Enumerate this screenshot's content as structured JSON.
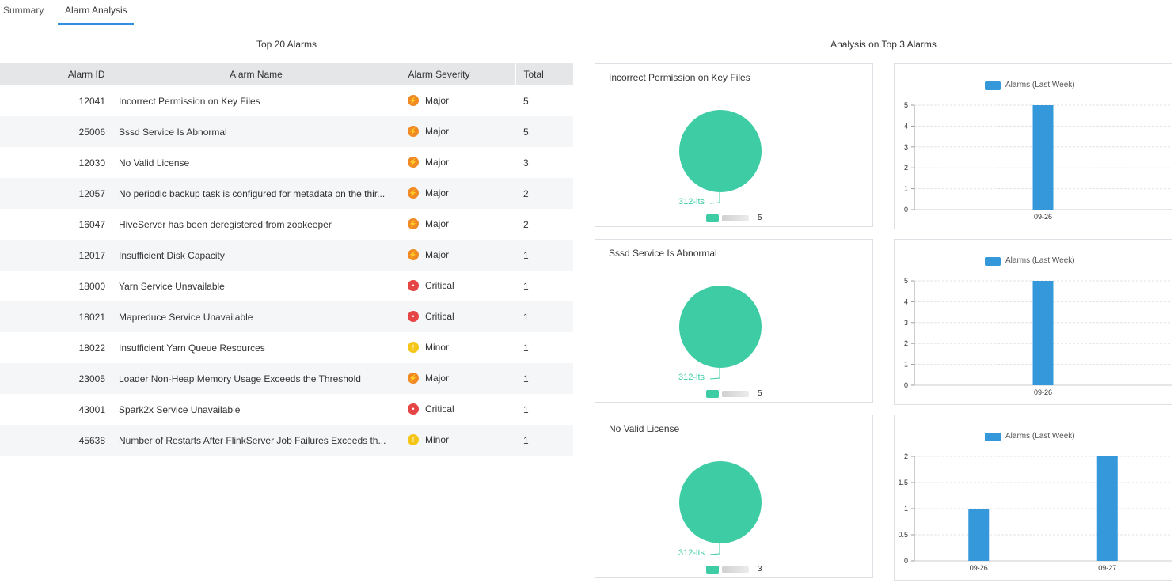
{
  "tabs": [
    {
      "label": "Summary",
      "active": false
    },
    {
      "label": "Alarm Analysis",
      "active": true
    }
  ],
  "left": {
    "title": "Top 20 Alarms",
    "columns": [
      "Alarm ID",
      "Alarm Name",
      "Alarm Severity",
      "Total"
    ],
    "rows": [
      {
        "id": "12041",
        "name": "Incorrect Permission on Key Files",
        "severity": "Major",
        "total": "5"
      },
      {
        "id": "25006",
        "name": "Sssd Service Is Abnormal",
        "severity": "Major",
        "total": "5"
      },
      {
        "id": "12030",
        "name": "No Valid License",
        "severity": "Major",
        "total": "3"
      },
      {
        "id": "12057",
        "name": "No periodic backup task is configured for metadata on the thir...",
        "severity": "Major",
        "total": "2"
      },
      {
        "id": "16047",
        "name": "HiveServer has been deregistered from zookeeper",
        "severity": "Major",
        "total": "2"
      },
      {
        "id": "12017",
        "name": "Insufficient Disk Capacity",
        "severity": "Major",
        "total": "1"
      },
      {
        "id": "18000",
        "name": "Yarn Service Unavailable",
        "severity": "Critical",
        "total": "1"
      },
      {
        "id": "18021",
        "name": "Mapreduce Service Unavailable",
        "severity": "Critical",
        "total": "1"
      },
      {
        "id": "18022",
        "name": "Insufficient Yarn Queue Resources",
        "severity": "Minor",
        "total": "1"
      },
      {
        "id": "23005",
        "name": "Loader Non-Heap Memory Usage Exceeds the Threshold",
        "severity": "Major",
        "total": "1"
      },
      {
        "id": "43001",
        "name": "Spark2x Service Unavailable",
        "severity": "Critical",
        "total": "1"
      },
      {
        "id": "45638",
        "name": "Number of Restarts After FlinkServer Job Failures Exceeds th...",
        "severity": "Minor",
        "total": "1"
      }
    ]
  },
  "right": {
    "title": "Analysis on Top 3 Alarms",
    "colors": {
      "pie": "#3ecca5",
      "bar": "#3498db",
      "major": "#f08a24",
      "critical": "#e54545",
      "minor": "#f5c518",
      "tab_accent": "#2f8ee0"
    }
  },
  "chart_data": [
    {
      "type": "pie",
      "title": "Incorrect Permission on Key Files",
      "slices": [
        {
          "label": "312-lts",
          "value": 5
        }
      ],
      "legend_value": "5"
    },
    {
      "type": "bar",
      "legend": "Alarms (Last Week)",
      "categories": [
        "09-26"
      ],
      "values": [
        5
      ],
      "ylim": [
        0,
        5
      ],
      "yticks": [
        "0",
        "1",
        "2",
        "3",
        "4",
        "5"
      ],
      "grid": true
    },
    {
      "type": "pie",
      "title": "Sssd Service Is Abnormal",
      "slices": [
        {
          "label": "312-lts",
          "value": 5
        }
      ],
      "legend_value": "5"
    },
    {
      "type": "bar",
      "legend": "Alarms (Last Week)",
      "categories": [
        "09-26"
      ],
      "values": [
        5
      ],
      "ylim": [
        0,
        5
      ],
      "yticks": [
        "0",
        "1",
        "2",
        "3",
        "4",
        "5"
      ],
      "grid": true
    },
    {
      "type": "pie",
      "title": "No Valid License",
      "slices": [
        {
          "label": "312-lts",
          "value": 3
        }
      ],
      "legend_value": "3"
    },
    {
      "type": "bar",
      "legend": "Alarms (Last Week)",
      "categories": [
        "09-26",
        "09-27"
      ],
      "values": [
        1,
        2
      ],
      "ylim": [
        0,
        2
      ],
      "yticks": [
        "0",
        "0.5",
        "1",
        "1.5",
        "2"
      ],
      "grid": true
    }
  ]
}
